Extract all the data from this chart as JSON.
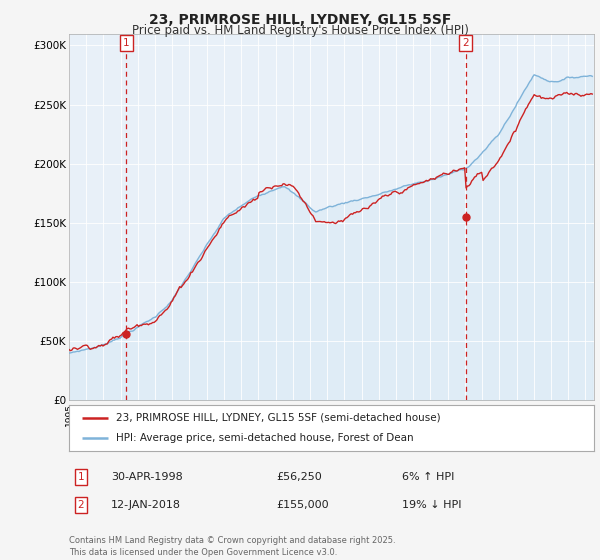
{
  "title": "23, PRIMROSE HILL, LYDNEY, GL15 5SF",
  "subtitle": "Price paid vs. HM Land Registry's House Price Index (HPI)",
  "ylabel_ticks": [
    "£0",
    "£50K",
    "£100K",
    "£150K",
    "£200K",
    "£250K",
    "£300K"
  ],
  "ytick_values": [
    0,
    50000,
    100000,
    150000,
    200000,
    250000,
    300000
  ],
  "ylim": [
    0,
    310000
  ],
  "xlim_start": 1995.0,
  "xlim_end": 2025.5,
  "hpi_color": "#7fb3d9",
  "hpi_fill_color": "#d9eaf5",
  "price_color": "#cc2222",
  "vline_color": "#cc2222",
  "marker1_x": 1998.33,
  "marker2_x": 2018.04,
  "sale1_price": 56250,
  "sale2_price": 155000,
  "legend_line1": "23, PRIMROSE HILL, LYDNEY, GL15 5SF (semi-detached house)",
  "legend_line2": "HPI: Average price, semi-detached house, Forest of Dean",
  "table_row1": [
    "1",
    "30-APR-1998",
    "£56,250",
    "6% ↑ HPI"
  ],
  "table_row2": [
    "2",
    "12-JAN-2018",
    "£155,000",
    "19% ↓ HPI"
  ],
  "footnote": "Contains HM Land Registry data © Crown copyright and database right 2025.\nThis data is licensed under the Open Government Licence v3.0.",
  "bg_color": "#f5f5f5",
  "plot_bg_color": "#e8f0f8",
  "grid_color": "#ffffff"
}
